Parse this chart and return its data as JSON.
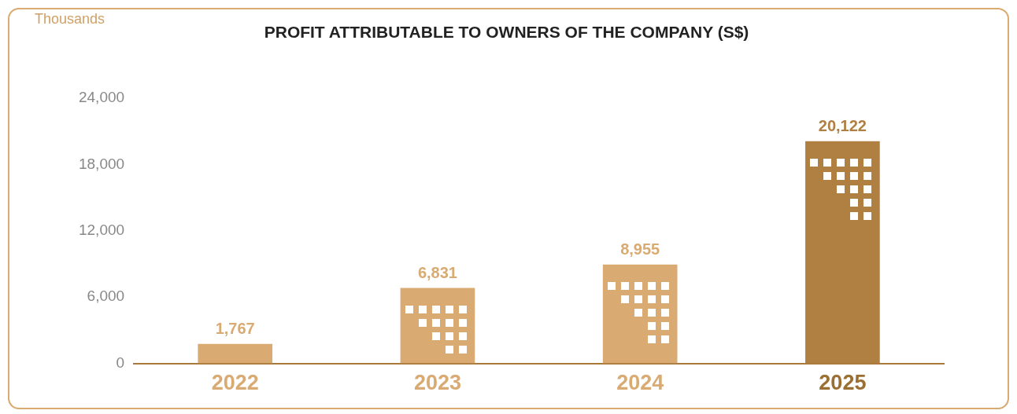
{
  "chart_data": {
    "type": "bar",
    "title": "PROFIT ATTRIBUTABLE TO OWNERS OF THE COMPANY (S$)",
    "ylabel": "Thousands",
    "categories": [
      "2022",
      "2023",
      "2024",
      "2025"
    ],
    "values": [
      1767,
      6831,
      8955,
      20122
    ],
    "colors": [
      "#d9ab73",
      "#d9ab73",
      "#d9ab73",
      "#b08043"
    ],
    "value_labels": [
      "1,767",
      "6,831",
      "8,955",
      "20,122"
    ],
    "ylim": [
      0,
      24000
    ],
    "yticks": [
      0,
      {
        "value": 6000,
        "label": "6,000"
      },
      {
        "value": 12000,
        "label": "12,000"
      },
      {
        "value": 18000,
        "label": "18,000"
      },
      {
        "value": 24000,
        "label": "24,000"
      }
    ],
    "grid": false,
    "legend": false
  }
}
